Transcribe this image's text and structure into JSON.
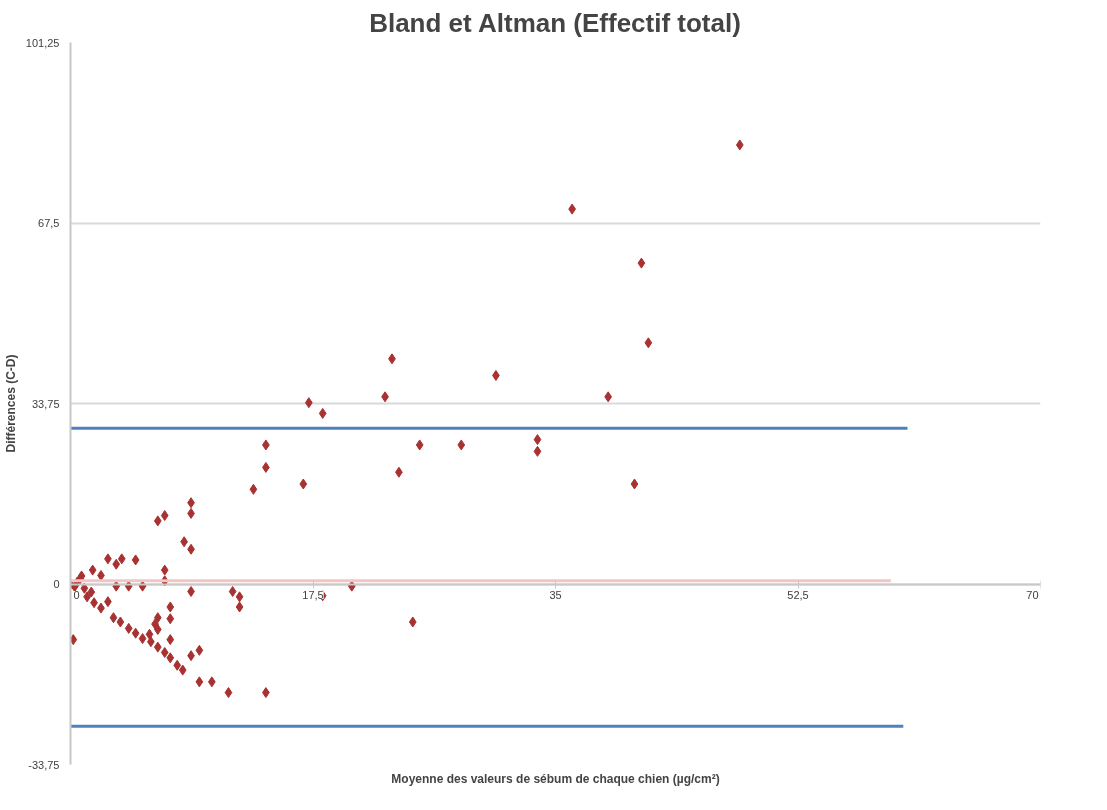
{
  "chart_data": {
    "type": "scatter",
    "title": "Bland et Altman (Effectif total)",
    "xlabel": "Moyenne des valeurs de sébum de chaque chien (µg/cm²)",
    "ylabel": "Différences (C-D)",
    "xlim": [
      0,
      70
    ],
    "xticks": [
      0,
      {
        "value": 17.5,
        "label": "17,5"
      },
      35,
      {
        "value": 52.5,
        "label": "52,5"
      },
      70
    ],
    "ylim": [
      -33.75,
      101.25
    ],
    "yticks": [
      {
        "value": -33.75,
        "label": "-33,75"
      },
      0,
      {
        "value": 33.75,
        "label": "33,75"
      },
      {
        "value": 67.5,
        "label": "67,5"
      },
      {
        "value": 101.25,
        "label": "101,25"
      }
    ],
    "grid": "y",
    "series": [
      {
        "marker": "diamond",
        "color": "#a83232",
        "x": [
          48.3,
          36.2,
          41.2,
          41.7,
          38.8,
          40.7,
          30.7,
          23.2,
          22.7,
          17.2,
          18.2,
          14.1,
          14.1,
          13.2,
          16.8,
          23.7,
          25.2,
          28.2,
          33.7,
          33.7,
          20.3,
          18.2,
          24.7,
          14.1,
          11.4,
          8.2,
          8.7,
          2.7,
          3.3,
          3.7,
          4.7,
          6.8,
          6.8,
          1.6,
          2.2,
          0.7,
          0,
          3.3,
          4.2,
          5.2,
          8.7,
          11.7,
          12.2,
          12.2,
          1.2,
          1.7,
          2.2,
          2.7,
          0.2,
          3.1,
          3.6,
          4.2,
          4.7,
          5.2,
          5.7,
          6.3,
          6.1,
          6.3,
          5.8,
          6.3,
          6.8,
          7.2,
          7.7,
          8.1,
          7.2,
          7.2,
          7.2,
          8.7,
          9.3,
          9.3,
          10.2,
          6.3,
          6.8,
          8.7,
          8.7,
          0.5,
          1.0,
          0.8,
          1.5,
          0.3
        ],
        "values": [
          82.1,
          70.1,
          60.0,
          45.1,
          35.0,
          18.7,
          39.0,
          42.1,
          35.0,
          33.9,
          31.9,
          26.0,
          21.8,
          17.7,
          18.7,
          20.9,
          26.0,
          26.0,
          27.0,
          24.8,
          -0.4,
          -2.2,
          -7.1,
          -20.3,
          -20.3,
          7.9,
          6.5,
          4.7,
          3.7,
          4.7,
          4.5,
          2.6,
          0.6,
          2.6,
          1.6,
          1.0,
          0,
          -0.4,
          -0.4,
          -0.4,
          -1.4,
          -1.4,
          -2.4,
          -4.3,
          -2.4,
          -3.5,
          -4.5,
          -3.3,
          -10.4,
          -6.3,
          -7.1,
          -8.3,
          -9.2,
          -10.2,
          -9.4,
          -6.3,
          -7.5,
          -8.5,
          -10.8,
          -11.8,
          -12.8,
          -13.8,
          -15.2,
          -16.1,
          -4.3,
          -6.5,
          -10.4,
          -13.4,
          -12.4,
          -18.3,
          -18.3,
          11.8,
          12.8,
          15.2,
          13.2,
          0.4,
          -0.8,
          1.5,
          -1.5,
          -0.5
        ]
      },
      {
        "type": "line",
        "color": "#4f81bd",
        "x": [
          0,
          60.4
        ],
        "values": [
          29.1,
          29.1
        ]
      },
      {
        "type": "line",
        "color": "#4f81bd",
        "x": [
          0,
          60.1
        ],
        "values": [
          -26.6,
          -26.6
        ]
      },
      {
        "type": "line",
        "color": "#f2c4c4",
        "x": [
          0,
          59.2
        ],
        "values": [
          0.6,
          0.6
        ]
      }
    ]
  }
}
